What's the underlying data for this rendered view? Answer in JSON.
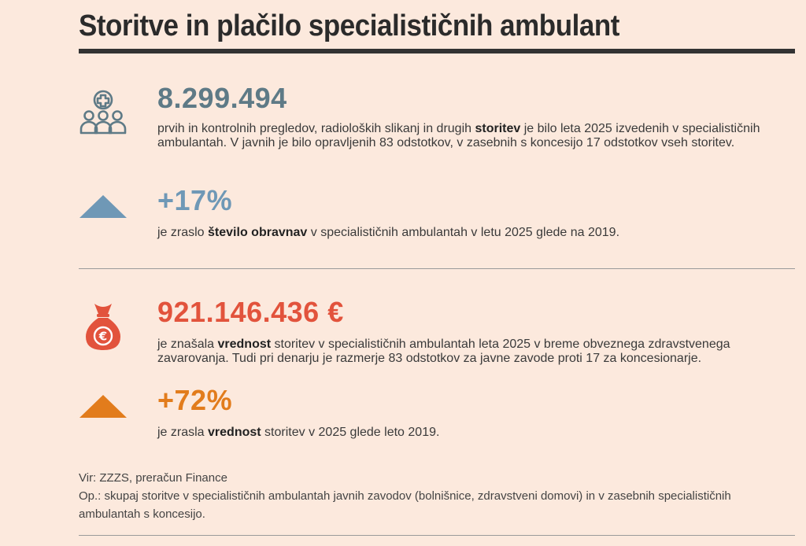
{
  "title": "Storitve in plačilo specialističnih ambulant",
  "colors": {
    "slate": "#5e7a86",
    "blue": "#6f98b6",
    "red": "#e2533c",
    "orange": "#e27c1c"
  },
  "section1": {
    "icon": "people-medical-cross-icon",
    "value": "8.299.494",
    "text_a": "prvih in kontrolnih pregledov, radioloških slikanj in drugih ",
    "text_b": "storitev",
    "text_c": " je bilo leta 2025 izvedenih v specialističnih ambulantah. V javnih je bilo opravljenih 83 odstotkov, v zasebnih s koncesijo 17 odstotkov vseh storitev."
  },
  "section2": {
    "icon": "up-triangle-icon",
    "value": "+17%",
    "text_a": "je zraslo ",
    "text_b": "število obravnav",
    "text_c": " v specialističnih ambulantah v letu 2025 glede na 2019."
  },
  "section3": {
    "icon": "euro-money-bag-icon",
    "value": "921.146.436 €",
    "text_a": "je znašala ",
    "text_b": "vrednost",
    "text_c": " storitev v specialističnih ambulantah leta 2025 v breme obveznega zdravstvenega zavarovanja. Tudi pri denarju je razmerje 83 odstotkov za javne zavode proti 17 za koncesionarje."
  },
  "section4": {
    "icon": "up-triangle-icon",
    "value": "+72%",
    "text_a": "je zrasla ",
    "text_b": "vrednost",
    "text_c": " storitev v 2025 glede leto 2019."
  },
  "footer": {
    "source": "Vir: ZZZS, preračun Finance",
    "note": "Op.: skupaj storitve v specialističnih ambulantah javnih zavodov (bolnišnice, zdravstveni domovi) in v zasebnih specialističnih ambulantah s koncesijo."
  }
}
